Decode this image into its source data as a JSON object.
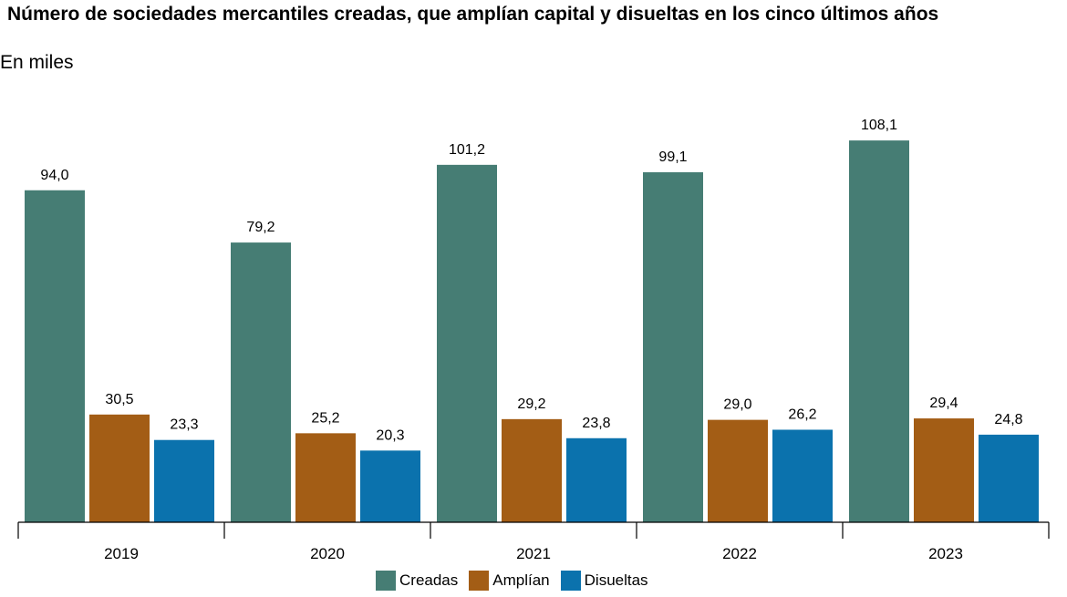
{
  "chart_data": {
    "type": "bar",
    "title": "Número de sociedades mercantiles creadas, que amplían capital y disueltas en los cinco últimos años",
    "subtitle": "En miles",
    "categories": [
      "2019",
      "2020",
      "2021",
      "2022",
      "2023"
    ],
    "series": [
      {
        "name": "Creadas",
        "color": "#467d74",
        "values": [
          94.0,
          79.2,
          101.2,
          99.1,
          108.1
        ],
        "labels": [
          "94,0",
          "79,2",
          "101,2",
          "99,1",
          "108,1"
        ]
      },
      {
        "name": "Amplían",
        "color": "#a35d15",
        "values": [
          30.5,
          25.2,
          29.2,
          29.0,
          29.4
        ],
        "labels": [
          "30,5",
          "25,2",
          "29,2",
          "29,0",
          "29,4"
        ]
      },
      {
        "name": "Disueltas",
        "color": "#0b72ad",
        "values": [
          23.3,
          20.3,
          23.8,
          26.2,
          24.8
        ],
        "labels": [
          "23,3",
          "20,3",
          "23,8",
          "26,2",
          "24,8"
        ]
      }
    ],
    "ylim": [
      0,
      115
    ],
    "grid": false,
    "legend_position": "bottom-center"
  }
}
